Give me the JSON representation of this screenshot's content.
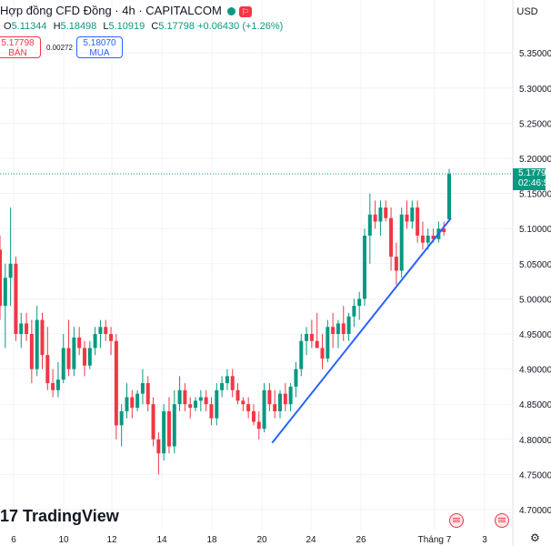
{
  "header": {
    "title": "Hợp đồng CFD Đồng · 4h · CAPITALCOM",
    "ohlc": {
      "open_label": "O",
      "open": "5.11344",
      "high_label": "H",
      "high": "5.18498",
      "low_label": "L",
      "low": "5.10919",
      "close_label": "C",
      "close": "5.17798",
      "change": "+0.06430 (+1.26%)"
    },
    "sell": {
      "price": "5.17798",
      "label": "BÁN"
    },
    "spread": "0.00272",
    "buy": {
      "price": "5.18070",
      "label": "MUA"
    },
    "status_color": "#089981"
  },
  "currency": "USD",
  "price_label": {
    "price": "5.17798",
    "countdown": "02:46:5"
  },
  "logo": {
    "brand": "TradingView"
  },
  "colors": {
    "up": "#089981",
    "down": "#f23645",
    "trendline": "#2962ff",
    "buy_border": "#2962ff"
  },
  "chart_data": {
    "type": "candlestick",
    "instrument": "Hợp đồng CFD Đồng",
    "interval": "4h",
    "ylim": [
      4.68,
      5.43
    ],
    "yticks": [
      "5.35000",
      "5.30000",
      "5.25000",
      "5.20000",
      "5.15000",
      "5.10000",
      "5.05000",
      "5.00000",
      "4.95000",
      "4.90000",
      "4.85000",
      "4.80000",
      "4.75000",
      "4.70000"
    ],
    "xticks": [
      "6",
      "10",
      "12",
      "14",
      "18",
      "20",
      "24",
      "26",
      "Tháng 7",
      "3"
    ],
    "current_price": 5.17798,
    "candles": [
      [
        5.07,
        5.09,
        4.97,
        4.99
      ],
      [
        4.99,
        5.05,
        4.93,
        5.03
      ],
      [
        5.03,
        5.13,
        4.99,
        5.05
      ],
      [
        5.05,
        5.06,
        4.94,
        4.95
      ],
      [
        4.95,
        4.98,
        4.93,
        4.965
      ],
      [
        4.965,
        4.98,
        4.94,
        4.95
      ],
      [
        4.95,
        4.97,
        4.88,
        4.9
      ],
      [
        4.9,
        4.99,
        4.89,
        4.97
      ],
      [
        4.97,
        4.98,
        4.9,
        4.92
      ],
      [
        4.92,
        4.96,
        4.87,
        4.88
      ],
      [
        4.88,
        4.9,
        4.86,
        4.87
      ],
      [
        4.87,
        4.91,
        4.86,
        4.885
      ],
      [
        4.885,
        4.95,
        4.88,
        4.93
      ],
      [
        4.93,
        4.97,
        4.89,
        4.9
      ],
      [
        4.9,
        4.96,
        4.89,
        4.945
      ],
      [
        4.945,
        4.96,
        4.92,
        4.93
      ],
      [
        4.93,
        4.94,
        4.89,
        4.905
      ],
      [
        4.905,
        4.94,
        4.9,
        4.93
      ],
      [
        4.93,
        4.96,
        4.92,
        4.95
      ],
      [
        4.95,
        4.97,
        4.93,
        4.96
      ],
      [
        4.96,
        4.97,
        4.94,
        4.95
      ],
      [
        4.95,
        4.96,
        4.92,
        4.94
      ],
      [
        4.94,
        4.95,
        4.8,
        4.82
      ],
      [
        4.82,
        4.85,
        4.79,
        4.84
      ],
      [
        4.84,
        4.88,
        4.83,
        4.86
      ],
      [
        4.86,
        4.87,
        4.83,
        4.845
      ],
      [
        4.845,
        4.87,
        4.84,
        4.865
      ],
      [
        4.865,
        4.9,
        4.85,
        4.88
      ],
      [
        4.88,
        4.89,
        4.84,
        4.85
      ],
      [
        4.85,
        4.86,
        4.79,
        4.8
      ],
      [
        4.8,
        4.81,
        4.75,
        4.78
      ],
      [
        4.78,
        4.85,
        4.77,
        4.84
      ],
      [
        4.84,
        4.86,
        4.78,
        4.79
      ],
      [
        4.79,
        4.87,
        4.78,
        4.85
      ],
      [
        4.85,
        4.89,
        4.84,
        4.87
      ],
      [
        4.87,
        4.88,
        4.84,
        4.85
      ],
      [
        4.85,
        4.86,
        4.83,
        4.845
      ],
      [
        4.845,
        4.86,
        4.84,
        4.855
      ],
      [
        4.855,
        4.87,
        4.84,
        4.86
      ],
      [
        4.86,
        4.87,
        4.84,
        4.85
      ],
      [
        4.85,
        4.86,
        4.82,
        4.83
      ],
      [
        4.83,
        4.88,
        4.82,
        4.87
      ],
      [
        4.87,
        4.89,
        4.86,
        4.88
      ],
      [
        4.88,
        4.9,
        4.87,
        4.89
      ],
      [
        4.89,
        4.9,
        4.86,
        4.87
      ],
      [
        4.87,
        4.88,
        4.85,
        4.855
      ],
      [
        4.855,
        4.86,
        4.84,
        4.85
      ],
      [
        4.85,
        4.86,
        4.83,
        4.84
      ],
      [
        4.84,
        4.85,
        4.82,
        4.825
      ],
      [
        4.825,
        4.84,
        4.8,
        4.815
      ],
      [
        4.815,
        4.88,
        4.81,
        4.87
      ],
      [
        4.87,
        4.88,
        4.84,
        4.85
      ],
      [
        4.85,
        4.87,
        4.83,
        4.84
      ],
      [
        4.84,
        4.87,
        4.83,
        4.865
      ],
      [
        4.865,
        4.88,
        4.84,
        4.85
      ],
      [
        4.85,
        4.88,
        4.84,
        4.875
      ],
      [
        4.875,
        4.91,
        4.86,
        4.9
      ],
      [
        4.9,
        4.95,
        4.89,
        4.94
      ],
      [
        4.94,
        4.96,
        4.92,
        4.95
      ],
      [
        4.95,
        4.97,
        4.93,
        4.94
      ],
      [
        4.94,
        4.98,
        4.93,
        4.93
      ],
      [
        4.93,
        4.95,
        4.9,
        4.915
      ],
      [
        4.915,
        4.97,
        4.91,
        4.96
      ],
      [
        4.96,
        4.98,
        4.93,
        4.95
      ],
      [
        4.95,
        4.97,
        4.93,
        4.965
      ],
      [
        4.965,
        4.99,
        4.94,
        4.95
      ],
      [
        4.95,
        4.98,
        4.94,
        4.975
      ],
      [
        4.975,
        5.0,
        4.96,
        4.99
      ],
      [
        4.99,
        5.01,
        4.97,
        5.0
      ],
      [
        5.0,
        5.1,
        4.99,
        5.09
      ],
      [
        5.09,
        5.15,
        5.05,
        5.12
      ],
      [
        5.12,
        5.14,
        5.1,
        5.11
      ],
      [
        5.11,
        5.14,
        5.09,
        5.13
      ],
      [
        5.13,
        5.14,
        5.11,
        5.115
      ],
      [
        5.115,
        5.13,
        5.04,
        5.06
      ],
      [
        5.06,
        5.08,
        5.02,
        5.04
      ],
      [
        5.04,
        5.13,
        5.03,
        5.12
      ],
      [
        5.12,
        5.14,
        5.1,
        5.11
      ],
      [
        5.11,
        5.14,
        5.1,
        5.13
      ],
      [
        5.13,
        5.14,
        5.08,
        5.09
      ],
      [
        5.09,
        5.11,
        5.07,
        5.08
      ],
      [
        5.08,
        5.1,
        5.07,
        5.09
      ],
      [
        5.09,
        5.1,
        5.08,
        5.085
      ],
      [
        5.085,
        5.11,
        5.08,
        5.1
      ],
      [
        5.1,
        5.11,
        5.09,
        5.095
      ],
      [
        5.11344,
        5.18498,
        5.10919,
        5.17798
      ]
    ],
    "trendline": {
      "from": [
        4.795
      ],
      "to": [
        5.115
      ]
    },
    "grid": true,
    "legend": "none"
  }
}
